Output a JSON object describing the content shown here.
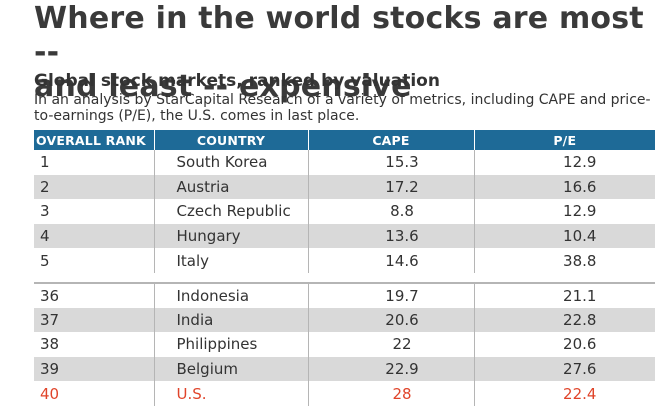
{
  "headline": {
    "line1": "Where in the world stocks are most --",
    "line2": "and least -- expensive"
  },
  "subtitle": "Global stock markets, ranked by valuation",
  "description": "In an analysis by StarCapital Research of a variety of metrics, including CAPE and price-to-earnings (P/E), the U.S. comes in last place.",
  "colors": {
    "header_bg": "#1e6a97",
    "row_shade": "#d9d9d9",
    "highlight": "#e0442a"
  },
  "chart_data": {
    "type": "table",
    "title": "Global stock markets, ranked by valuation",
    "columns": [
      "OVERALL RANK",
      "COUNTRY",
      "CAPE",
      "P/E"
    ],
    "rows": [
      {
        "rank": "1",
        "country": "South Korea",
        "cape": "15.3",
        "pe": "12.9"
      },
      {
        "rank": "2",
        "country": "Austria",
        "cape": "17.2",
        "pe": "16.6"
      },
      {
        "rank": "3",
        "country": "Czech Republic",
        "cape": "8.8",
        "pe": "12.9"
      },
      {
        "rank": "4",
        "country": "Hungary",
        "cape": "13.6",
        "pe": "10.4"
      },
      {
        "rank": "5",
        "country": "Italy",
        "cape": "14.6",
        "pe": "38.8"
      },
      {
        "rank": "36",
        "country": "Indonesia",
        "cape": "19.7",
        "pe": "21.1"
      },
      {
        "rank": "37",
        "country": "India",
        "cape": "20.6",
        "pe": "22.8"
      },
      {
        "rank": "38",
        "country": "Philippines",
        "cape": "22",
        "pe": "20.6"
      },
      {
        "rank": "39",
        "country": "Belgium",
        "cape": "22.9",
        "pe": "27.6"
      },
      {
        "rank": "40",
        "country": "U.S.",
        "cape": "28",
        "pe": "22.4",
        "highlight": true
      }
    ]
  }
}
